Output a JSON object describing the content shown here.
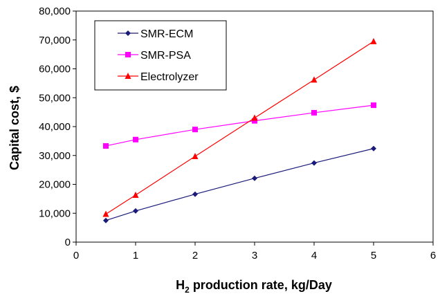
{
  "chart_data": {
    "type": "line",
    "title": "",
    "xlabel": {
      "prefix": "H",
      "subscript": "2",
      "suffix": " production rate, kg/Day"
    },
    "ylabel": "Capital cost, $",
    "xlim": [
      0,
      6
    ],
    "ylim": [
      0,
      80000
    ],
    "x_ticks": [
      0,
      1,
      2,
      3,
      4,
      5,
      6
    ],
    "y_ticks": [
      0,
      10000,
      20000,
      30000,
      40000,
      50000,
      60000,
      70000,
      80000
    ],
    "y_tick_labels": [
      "0",
      "10,000",
      "20,000",
      "30,000",
      "40,000",
      "50,000",
      "60,000",
      "70,000",
      "80,000"
    ],
    "grid": false,
    "legend_position": "top-left",
    "series": [
      {
        "name": "SMR-ECM",
        "color": "#1a1a7a",
        "marker": "diamond",
        "x": [
          0.5,
          1,
          2,
          3,
          4,
          5
        ],
        "values": [
          7500,
          10800,
          16600,
          22100,
          27400,
          32400
        ]
      },
      {
        "name": "SMR-PSA",
        "color": "#ff00ff",
        "marker": "square",
        "x": [
          0.5,
          1,
          2,
          3,
          4,
          5
        ],
        "values": [
          33300,
          35500,
          39000,
          42000,
          44800,
          47400
        ]
      },
      {
        "name": "Electrolyzer",
        "color": "#ff0000",
        "marker": "triangle",
        "x": [
          0.5,
          1,
          2,
          3,
          4,
          5
        ],
        "values": [
          9700,
          16300,
          29700,
          43000,
          56200,
          69500
        ]
      }
    ]
  }
}
